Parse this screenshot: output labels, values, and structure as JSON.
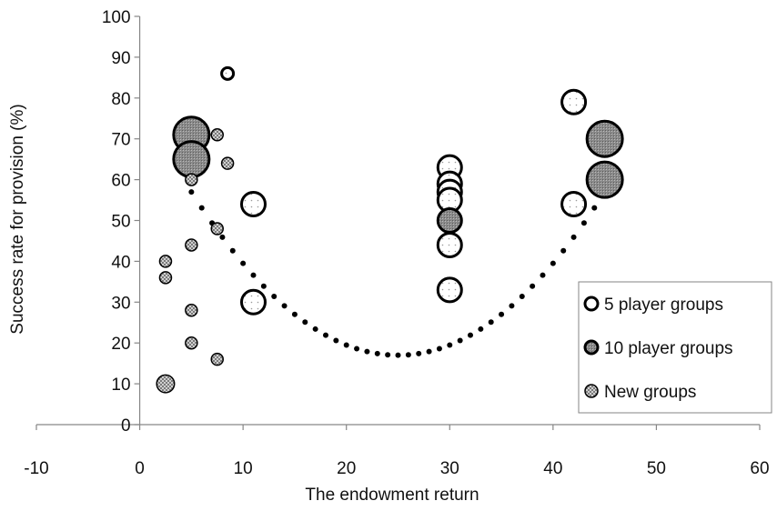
{
  "chart_data": {
    "type": "scatter",
    "xlabel": "The endowment return",
    "ylabel": "Success rate for provision (%)",
    "xlim": [
      -10,
      60
    ],
    "ylim": [
      0,
      100
    ],
    "x_ticks": [
      -10,
      0,
      10,
      20,
      30,
      40,
      50,
      60
    ],
    "y_ticks": [
      0,
      10,
      20,
      30,
      40,
      50,
      60,
      70,
      80,
      90,
      100
    ],
    "grid": false,
    "legend_position": "right",
    "series": [
      {
        "name": "5 player groups",
        "style": "open-dotted",
        "points": [
          {
            "x": 8.5,
            "y": 86,
            "size": 1
          },
          {
            "x": 11,
            "y": 54,
            "size": 2
          },
          {
            "x": 11,
            "y": 30,
            "size": 2
          },
          {
            "x": 30,
            "y": 63,
            "size": 2
          },
          {
            "x": 30,
            "y": 59,
            "size": 2
          },
          {
            "x": 30,
            "y": 57,
            "size": 2
          },
          {
            "x": 30,
            "y": 55,
            "size": 2
          },
          {
            "x": 30,
            "y": 44,
            "size": 2
          },
          {
            "x": 30,
            "y": 33,
            "size": 2
          },
          {
            "x": 42,
            "y": 79,
            "size": 2
          },
          {
            "x": 42,
            "y": 54,
            "size": 2
          }
        ]
      },
      {
        "name": "10 player groups",
        "style": "filled-gray",
        "points": [
          {
            "x": 5,
            "y": 71,
            "size": 3
          },
          {
            "x": 5,
            "y": 65,
            "size": 3
          },
          {
            "x": 30,
            "y": 50,
            "size": 2
          },
          {
            "x": 45,
            "y": 70,
            "size": 3
          },
          {
            "x": 45,
            "y": 60,
            "size": 3
          }
        ]
      },
      {
        "name": "New groups",
        "style": "crosshatch",
        "points": [
          {
            "x": 2.5,
            "y": 40,
            "size": 1
          },
          {
            "x": 2.5,
            "y": 36,
            "size": 1
          },
          {
            "x": 2.5,
            "y": 10,
            "size": 1.5
          },
          {
            "x": 5,
            "y": 60,
            "size": 1
          },
          {
            "x": 5,
            "y": 44,
            "size": 1
          },
          {
            "x": 5,
            "y": 28,
            "size": 1
          },
          {
            "x": 5,
            "y": 20,
            "size": 1
          },
          {
            "x": 7.5,
            "y": 71,
            "size": 1
          },
          {
            "x": 7.5,
            "y": 48,
            "size": 1
          },
          {
            "x": 7.5,
            "y": 16,
            "size": 1
          },
          {
            "x": 8.5,
            "y": 64,
            "size": 1
          }
        ]
      }
    ],
    "curve": {
      "style": "dotted",
      "vertex_x": 25,
      "vertex_y": 17,
      "coef": 0.1,
      "x_from": 5,
      "x_to": 45,
      "step": 1
    },
    "colors": {
      "axis": "#868686",
      "outline": "#000000",
      "fill_gray": "#8c8c8c",
      "fill_white": "#ffffff",
      "curve": "#000000"
    }
  }
}
